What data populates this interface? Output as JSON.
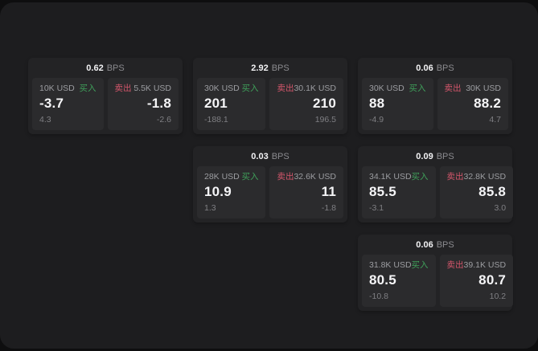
{
  "labels": {
    "bps_unit": "BPS",
    "buy": "买入",
    "sell": "卖出"
  },
  "colors": {
    "buy_green": "#3fa05a",
    "sell_red": "#d4566b",
    "page_bg": "#1d1d1f",
    "card_bg": "#232325",
    "panel_bg": "#2b2b2d"
  },
  "cards": [
    {
      "bps": "0.62",
      "buy": {
        "size": "10K USD",
        "price": "-3.7",
        "change": "4.3"
      },
      "sell": {
        "size": "5.5K USD",
        "price": "-1.8",
        "change": "-2.6"
      }
    },
    {
      "bps": "2.92",
      "buy": {
        "size": "30K USD",
        "price": "201",
        "change": "-188.1"
      },
      "sell": {
        "size": "30.1K USD",
        "price": "210",
        "change": "196.5"
      }
    },
    {
      "bps": "0.06",
      "buy": {
        "size": "30K USD",
        "price": "88",
        "change": "-4.9"
      },
      "sell": {
        "size": "30K USD",
        "price": "88.2",
        "change": "4.7"
      }
    },
    {
      "bps": "0.03",
      "buy": {
        "size": "28K USD",
        "price": "10.9",
        "change": "1.3"
      },
      "sell": {
        "size": "32.6K USD",
        "price": "11",
        "change": "-1.8"
      }
    },
    {
      "bps": "0.09",
      "buy": {
        "size": "34.1K USD",
        "price": "85.5",
        "change": "-3.1"
      },
      "sell": {
        "size": "32.8K USD",
        "price": "85.8",
        "change": "3.0"
      }
    },
    {
      "bps": "0.06",
      "buy": {
        "size": "31.8K USD",
        "price": "80.5",
        "change": "-10.8"
      },
      "sell": {
        "size": "39.1K USD",
        "price": "80.7",
        "change": "10.2"
      }
    }
  ]
}
